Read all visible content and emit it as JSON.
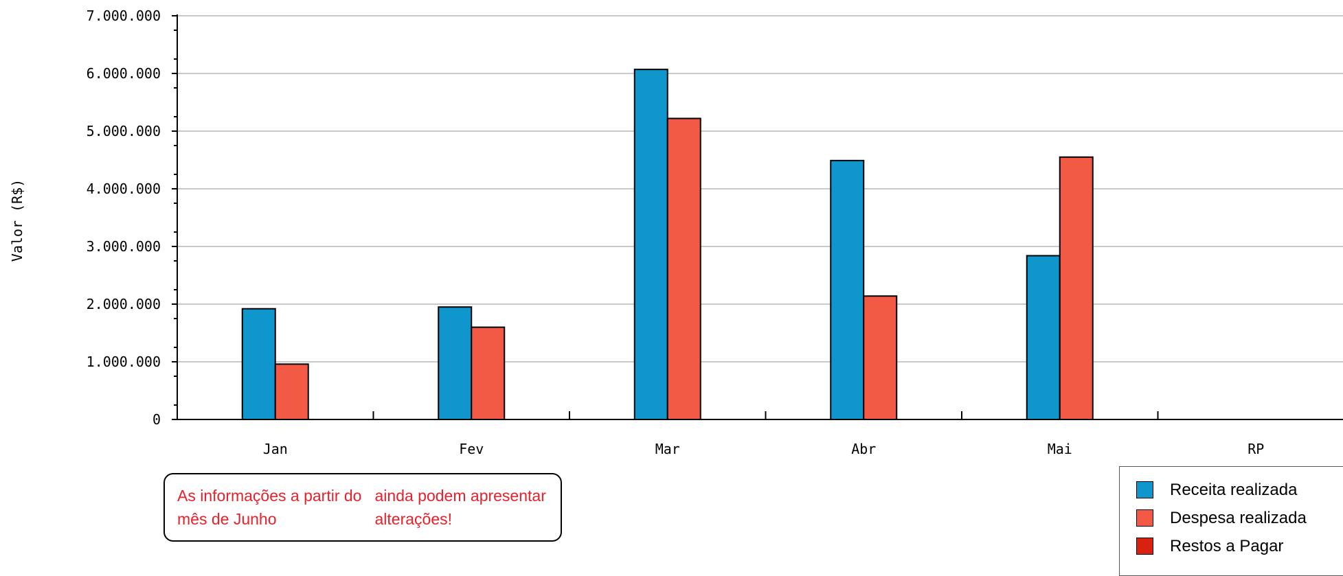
{
  "chart_data": {
    "type": "bar",
    "title": "",
    "xlabel": "",
    "ylabel": "Valor (R$)",
    "ylim": [
      0,
      7000000
    ],
    "yticks": [
      "0",
      "1.000.000",
      "2.000.000",
      "3.000.000",
      "4.000.000",
      "5.000.000",
      "6.000.000",
      "7.000.000"
    ],
    "grid": true,
    "legend_position": "bottom-right",
    "categories": [
      "Jan",
      "Fev",
      "Mar",
      "Abr",
      "Mai",
      "RP"
    ],
    "series": [
      {
        "name": "Receita realizada",
        "color": "#0f96cc",
        "values": [
          1920000,
          1950000,
          6070000,
          4490000,
          2840000,
          0
        ]
      },
      {
        "name": "Despesa realizada",
        "color": "#f25a46",
        "values": [
          960000,
          1600000,
          5220000,
          2140000,
          4550000,
          0
        ]
      },
      {
        "name": "Restos a Pagar",
        "color": "#d9210f",
        "values": [
          0,
          0,
          0,
          0,
          0,
          0
        ]
      }
    ]
  },
  "note": {
    "line1": "As informações a partir do mês de Junho",
    "line2": "ainda podem apresentar alterações!"
  }
}
